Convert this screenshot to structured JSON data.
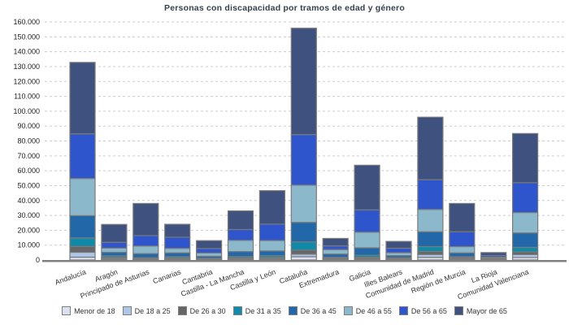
{
  "chart_data": {
    "type": "bar",
    "stacked": true,
    "title": "Personas con discapacidad por tramos de edad y género",
    "categories": [
      "Andalucía",
      "Aragón",
      "Principado de Asturias",
      "Canarias",
      "Cantabria",
      "Castilla - La Mancha",
      "Castilla y León",
      "Cataluña",
      "Extremadura",
      "Galicia",
      "Illes Balears",
      "Comunidad de Madrid",
      "Región de Murcia",
      "La Rioja",
      "Comunidad Valenciana"
    ],
    "series": [
      {
        "name": "Menor de 18",
        "color": "#dce1f0",
        "values": [
          1900,
          400,
          250,
          350,
          200,
          400,
          500,
          2200,
          300,
          500,
          250,
          1800,
          500,
          100,
          1700
        ]
      },
      {
        "name": "De 18 a 25",
        "color": "#aec6e8",
        "values": [
          3300,
          700,
          300,
          450,
          300,
          500,
          600,
          1700,
          400,
          600,
          350,
          1900,
          500,
          100,
          2000
        ]
      },
      {
        "name": "De 26 a 30",
        "color": "#666666",
        "values": [
          3900,
          600,
          350,
          500,
          300,
          500,
          550,
          2700,
          400,
          700,
          350,
          2000,
          500,
          150,
          1700
        ]
      },
      {
        "name": "De 31 a 35",
        "color": "#1189a8",
        "values": [
          5800,
          1100,
          600,
          900,
          400,
          900,
          1250,
          5600,
          700,
          1400,
          550,
          3300,
          700,
          200,
          3100
        ]
      },
      {
        "name": "De 36 a 45",
        "color": "#2268a8",
        "values": [
          14900,
          2400,
          2800,
          2600,
          1300,
          3400,
          3200,
          13100,
          2200,
          5000,
          1500,
          10000,
          2600,
          550,
          9700
        ]
      },
      {
        "name": "De 46 a 55",
        "color": "#8cb8cc",
        "values": [
          25000,
          2800,
          5100,
          3000,
          2200,
          7500,
          7000,
          25000,
          3000,
          10500,
          1900,
          15000,
          4200,
          800,
          13700
        ]
      },
      {
        "name": "De 56 a 65",
        "color": "#2e55cb",
        "values": [
          30000,
          3900,
          7000,
          7500,
          3000,
          7300,
          11000,
          34000,
          2500,
          15000,
          3000,
          20000,
          10000,
          1100,
          20100
        ]
      },
      {
        "name": "Mayor de 65",
        "color": "#3f517e",
        "values": [
          48000,
          12000,
          21600,
          8700,
          5300,
          12500,
          22500,
          71500,
          5000,
          30000,
          4600,
          42000,
          19000,
          2000,
          33000
        ]
      }
    ],
    "ylim": [
      0,
      160000
    ],
    "ytick_step": 10000,
    "y_number_format": "dot-thousands",
    "x_label_rotation_deg": -20,
    "legend_position": "bottom",
    "grid": "horizontal-dashed",
    "colors_meta": {
      "grid_line": "#cdcdcd",
      "axis_line": "#7f7f7f",
      "bar_stroke": "#7a7a7a",
      "tick_label": "#222222",
      "category_label": "#333333",
      "title_text": "#36424e"
    }
  }
}
